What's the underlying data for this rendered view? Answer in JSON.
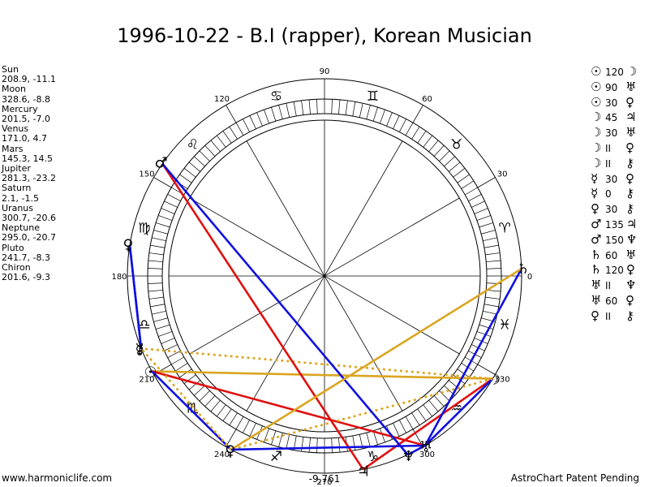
{
  "title": "1996-10-22 - B.I (rapper), Korean Musician",
  "planets": [
    {
      "name": "Sun",
      "coords": "208.9, -11.1"
    },
    {
      "name": "Moon",
      "coords": "328.6, -8.8"
    },
    {
      "name": "Mercury",
      "coords": "201.5, -7.0"
    },
    {
      "name": "Venus",
      "coords": "171.0, 4.7"
    },
    {
      "name": "Mars",
      "coords": "145.3, 14.5"
    },
    {
      "name": "Jupiter",
      "coords": "281.3, -23.2"
    },
    {
      "name": "Saturn",
      "coords": "2.1, -1.5"
    },
    {
      "name": "Uranus",
      "coords": "300.7, -20.6"
    },
    {
      "name": "Neptune",
      "coords": "295.0, -20.7"
    },
    {
      "name": "Pluto",
      "coords": "241.7, -8.3"
    },
    {
      "name": "Chiron",
      "coords": "201.6, -9.3"
    }
  ],
  "aspects": [
    {
      "p1": "☉",
      "angle": "120",
      "p2": "☽"
    },
    {
      "p1": "☉",
      "angle": "90",
      "p2": "♅"
    },
    {
      "p1": "☉",
      "angle": "30",
      "p2": "♀"
    },
    {
      "p1": "☽",
      "angle": "45",
      "p2": "♃"
    },
    {
      "p1": "☽",
      "angle": "30",
      "p2": "♅"
    },
    {
      "p1": "☽",
      "angle": "II",
      "p2": "♀"
    },
    {
      "p1": "☽",
      "angle": "II",
      "p2": "⚷"
    },
    {
      "p1": "☿",
      "angle": "30",
      "p2": "♀"
    },
    {
      "p1": "☿",
      "angle": "0",
      "p2": "⚷"
    },
    {
      "p1": "♀",
      "angle": "30",
      "p2": "⚷"
    },
    {
      "p1": "♂",
      "angle": "135",
      "p2": "♃"
    },
    {
      "p1": "♂",
      "angle": "150",
      "p2": "♆"
    },
    {
      "p1": "♄",
      "angle": "60",
      "p2": "♅"
    },
    {
      "p1": "♄",
      "angle": "120",
      "p2": "♀"
    },
    {
      "p1": "♅",
      "angle": "II",
      "p2": "♆"
    },
    {
      "p1": "♅",
      "angle": "60",
      "p2": "♀"
    },
    {
      "p1": "♀",
      "angle": "II",
      "p2": "⚷"
    }
  ],
  "degree_labels": [
    "90",
    "60",
    "30",
    "0",
    "330",
    "300",
    "270",
    "240",
    "210",
    "180",
    "150",
    "120"
  ],
  "footer_left": "www.harmoniclife.com",
  "footer_center": "-9,761",
  "footer_right": "AstroChart Patent Pending",
  "zodiac_signs": [
    "♈",
    "♉",
    "♊",
    "♋",
    "♌",
    "♍",
    "♎",
    "♏",
    "♐",
    "♑",
    "♒",
    "♓"
  ],
  "chart_data": {
    "type": "astrological-wheel",
    "planet_glyphs": [
      {
        "glyph": "☉",
        "longitude": 208.9
      },
      {
        "glyph": "☽",
        "longitude": 328.6
      },
      {
        "glyph": "☿",
        "longitude": 201.5
      },
      {
        "glyph": "♀",
        "longitude": 171.0
      },
      {
        "glyph": "♂",
        "longitude": 145.3
      },
      {
        "glyph": "♃",
        "longitude": 281.3
      },
      {
        "glyph": "♄",
        "longitude": 2.1
      },
      {
        "glyph": "♅",
        "longitude": 300.7
      },
      {
        "glyph": "♆",
        "longitude": 295.0
      },
      {
        "glyph": "♀",
        "longitude": 241.7
      },
      {
        "glyph": "⚷",
        "longitude": 201.6
      }
    ],
    "aspect_lines": [
      {
        "from": 208.9,
        "to": 328.6,
        "color": "#daa520",
        "style": "solid"
      },
      {
        "from": 208.9,
        "to": 300.7,
        "color": "#e01010",
        "style": "solid"
      },
      {
        "from": 208.9,
        "to": 241.7,
        "color": "#1010e0",
        "style": "solid"
      },
      {
        "from": 328.6,
        "to": 281.3,
        "color": "#e01010",
        "style": "solid"
      },
      {
        "from": 328.6,
        "to": 300.7,
        "color": "#1010e0",
        "style": "solid"
      },
      {
        "from": 328.6,
        "to": 241.7,
        "color": "#daa520",
        "style": "dotted"
      },
      {
        "from": 328.6,
        "to": 201.6,
        "color": "#daa520",
        "style": "dotted"
      },
      {
        "from": 201.5,
        "to": 171.0,
        "color": "#1010e0",
        "style": "solid"
      },
      {
        "from": 171.0,
        "to": 201.6,
        "color": "#1010e0",
        "style": "solid"
      },
      {
        "from": 145.3,
        "to": 281.3,
        "color": "#e01010",
        "style": "solid"
      },
      {
        "from": 145.3,
        "to": 295.0,
        "color": "#1010e0",
        "style": "solid"
      },
      {
        "from": 2.1,
        "to": 300.7,
        "color": "#1010e0",
        "style": "solid"
      },
      {
        "from": 2.1,
        "to": 241.7,
        "color": "#daa520",
        "style": "solid"
      },
      {
        "from": 300.7,
        "to": 295.0,
        "color": "#1010e0",
        "style": "solid"
      },
      {
        "from": 300.7,
        "to": 241.7,
        "color": "#1010e0",
        "style": "solid"
      },
      {
        "from": 241.7,
        "to": 201.6,
        "color": "#daa520",
        "style": "dotted"
      }
    ]
  }
}
